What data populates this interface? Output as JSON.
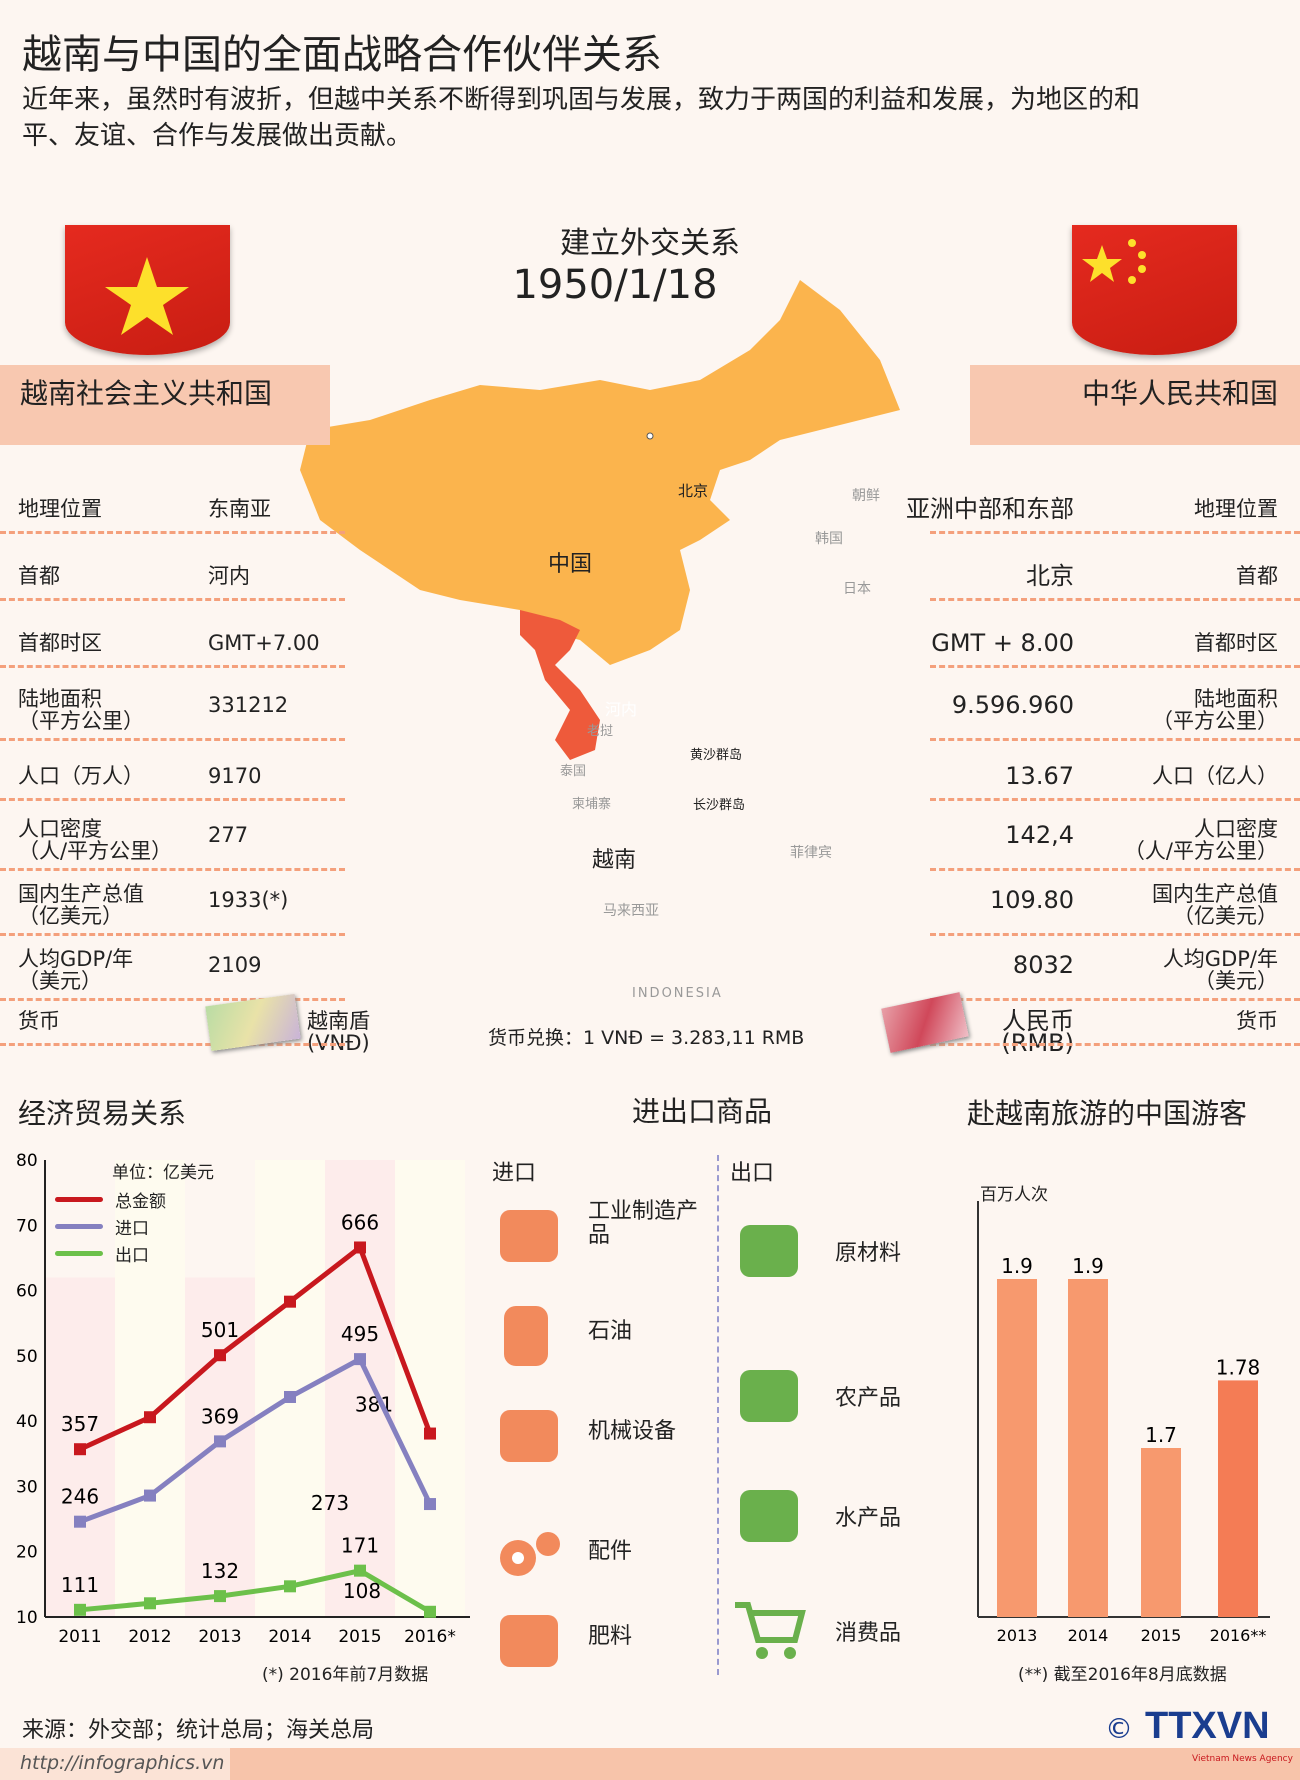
{
  "title": "越南与中国的全面战略合作伙伴关系",
  "subtitle": "近年来，虽然时有波折，但越中关系不断得到巩固与发展，致力于两国的利益和发展，为地区的和平、友谊、合作与发展做出贡献。",
  "diplomacy": {
    "label": "建立外交关系",
    "date": "1950/1/18"
  },
  "vietnam": {
    "name": "越南社会主义共和国",
    "rows": [
      {
        "label": "地理位置",
        "value": "东南亚"
      },
      {
        "label": "首都",
        "value": "河内"
      },
      {
        "label": "首都时区",
        "value": "GMT+7.00"
      },
      {
        "label": "陆地面积",
        "sub": "（平方公里）",
        "value": "331212"
      },
      {
        "label": "人口（万人）",
        "value": "9170"
      },
      {
        "label": "人口密度",
        "sub": "（人/平方公里）",
        "value": "277"
      },
      {
        "label": "国内生产总值",
        "sub": "（亿美元）",
        "value": "1933(*)"
      },
      {
        "label": "人均GDP/年",
        "sub": "（美元）",
        "value": "2109"
      },
      {
        "label": "货币",
        "value": "越南盾",
        "sub_value": "(VNĐ)"
      }
    ]
  },
  "china": {
    "name": "中华人民共和国",
    "rows": [
      {
        "label": "地理位置",
        "value": "亚洲中部和东部"
      },
      {
        "label": "首都",
        "value": "北京"
      },
      {
        "label": "首都时区",
        "value": "GMT + 8.00"
      },
      {
        "label": "陆地面积",
        "sub": "（平方公里）",
        "value": "9.596.960"
      },
      {
        "label": "人口（亿人）",
        "value": "13.67"
      },
      {
        "label": "人口密度",
        "sub": "（人/平方公里）",
        "value": "142,4"
      },
      {
        "label": "国内生产总值",
        "sub": "（亿美元）",
        "value": "109.80"
      },
      {
        "label": "人均GDP/年",
        "sub": "（美元）",
        "value": "8032"
      },
      {
        "label": "货币",
        "value": "人民币",
        "sub_value": "(RMB)"
      }
    ]
  },
  "map": {
    "labels": [
      "北京",
      "朝鲜",
      "韩国",
      "日本",
      "中国",
      "河内",
      "老挝",
      "泰国",
      "柬埔寨",
      "黄沙群岛",
      "长沙群岛",
      "越南",
      "菲律宾",
      "马来西亚",
      "INDONESIA"
    ]
  },
  "exchange": "货币兑换：1 VNĐ = 3.283,11 RMB",
  "colors": {
    "china_map": "#fbb44d",
    "vietnam_map": "#ee5a3b",
    "ribbon": "#f8c8b0",
    "total": "#c8181e",
    "import": "#8580c0",
    "export": "#6cc04a",
    "bar": "#f7996e",
    "bar_highlight": "#f47c55",
    "icon": "#f28a5c",
    "icon_export": "#6ab04c"
  },
  "trade": {
    "title": "经济贸易关系",
    "footnote": "(*) 2016年前7月数据"
  },
  "goods": {
    "title": "进出口商品",
    "import_label": "进口",
    "export_label": "出口",
    "imports": [
      {
        "label": "工业制造产品",
        "icon": "conveyor-icon"
      },
      {
        "label": "石油",
        "icon": "oil-barrel-icon"
      },
      {
        "label": "机械设备",
        "icon": "robot-arm-icon"
      },
      {
        "label": "配件",
        "icon": "gears-icon"
      },
      {
        "label": "肥料",
        "icon": "fertilizer-bag-icon"
      }
    ],
    "exports": [
      {
        "label": "原材料",
        "icon": "raw-materials-icon"
      },
      {
        "label": "农产品",
        "icon": "wheat-icon"
      },
      {
        "label": "水产品",
        "icon": "shrimp-icon"
      },
      {
        "label": "消费品",
        "icon": "shopping-cart-icon"
      }
    ]
  },
  "tourism": {
    "title": "赴越南旅游的中国游客",
    "footnote": "(**) 截至2016年8月底数据"
  },
  "source": "来源：外交部；统计总局；海关总局",
  "url": "http://infographics.vn",
  "logo": {
    "text": "TTXVN",
    "sub": "Vietnam News Agency",
    "copyright": "©"
  },
  "chart_data": [
    {
      "type": "line",
      "title": "经济贸易关系",
      "unit": "单位：亿美元",
      "categories": [
        "2011",
        "2012",
        "2013",
        "2014",
        "2015",
        "2016*"
      ],
      "ylim": [
        10,
        80
      ],
      "yticks": [
        10,
        20,
        30,
        40,
        50,
        60,
        70,
        80
      ],
      "series": [
        {
          "name": "总金额",
          "values": [
            35.7,
            40.6,
            50.1,
            58.3,
            66.6,
            38.1
          ],
          "labels": [
            "357",
            "",
            "501",
            "",
            "666",
            "381"
          ]
        },
        {
          "name": "进口",
          "values": [
            24.6,
            28.6,
            36.9,
            43.7,
            49.5,
            27.3
          ],
          "labels": [
            "246",
            "",
            "369",
            "",
            "495",
            "273"
          ]
        },
        {
          "name": "出口",
          "values": [
            11.1,
            12.1,
            13.2,
            14.7,
            17.1,
            10.8
          ],
          "labels": [
            "111",
            "",
            "132",
            "",
            "171",
            "108"
          ]
        }
      ]
    },
    {
      "type": "bar",
      "title": "赴越南旅游的中国游客",
      "ylabel": "百万人次",
      "categories": [
        "2013",
        "2014",
        "2015",
        "2016**"
      ],
      "values": [
        1.9,
        1.9,
        1.7,
        1.78
      ],
      "labels": [
        "1.9",
        "1.9",
        "1.7",
        "1.78"
      ],
      "ylim": [
        1.5,
        2.0
      ]
    }
  ]
}
